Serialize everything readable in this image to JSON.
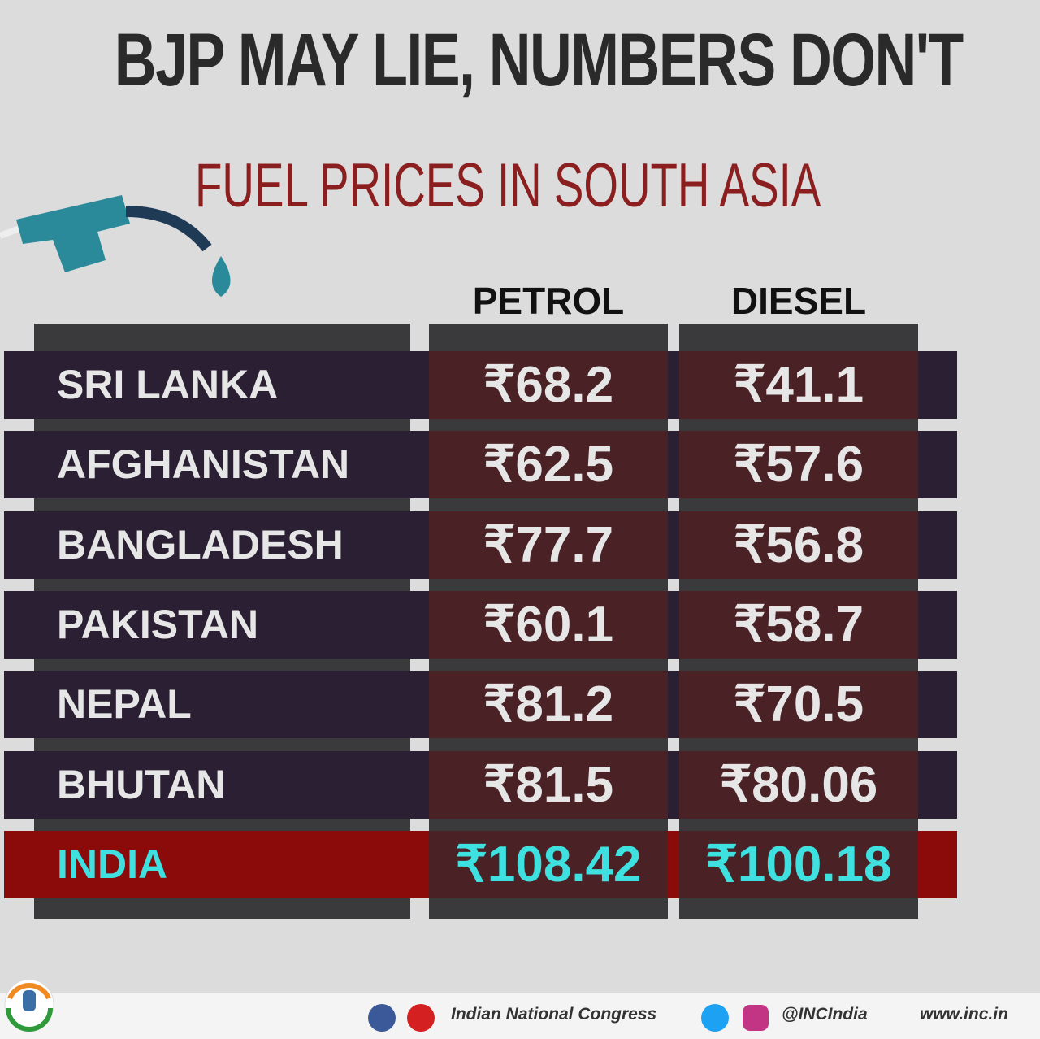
{
  "header": {
    "title": "BJP MAY LIE, NUMBERS DON'T",
    "subtitle": "FUEL PRICES IN SOUTH ASIA"
  },
  "table": {
    "columns": [
      "PETROL",
      "DIESEL"
    ],
    "rows": [
      [
        "SRI LANKA",
        "₹68.2",
        "₹41.1"
      ],
      [
        "AFGHANISTAN",
        "₹62.5",
        "₹57.6"
      ],
      [
        "BANGLADESH",
        "₹77.7",
        "₹56.8"
      ],
      [
        "PAKISTAN",
        "₹60.1",
        "₹58.7"
      ],
      [
        "NEPAL",
        "₹81.2",
        "₹70.5"
      ],
      [
        "BHUTAN",
        "₹81.5",
        "₹80.06"
      ],
      [
        "INDIA",
        "₹108.42",
        "₹100.18"
      ]
    ]
  },
  "footer": {
    "name": "Indian National Congress",
    "handle": "@INCIndia",
    "website": "www.inc.in"
  }
}
